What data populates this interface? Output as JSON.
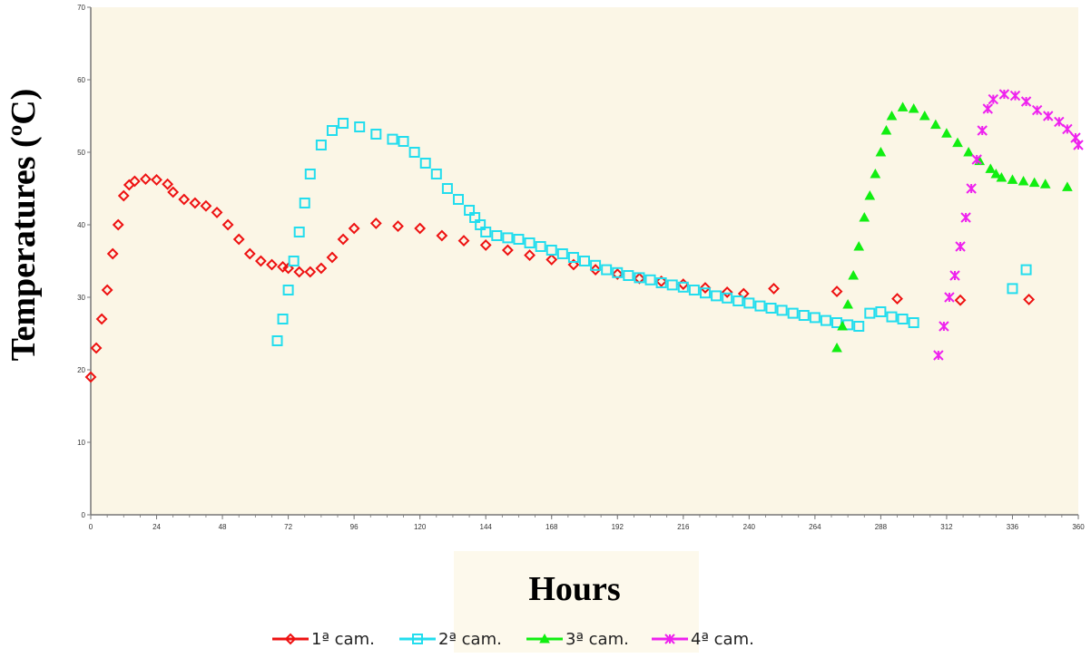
{
  "chart_data": {
    "type": "scatter",
    "ylabel": "Temperatures (ºC)",
    "xlabel": "Hours",
    "xlim": [
      0,
      360
    ],
    "ylim": [
      0,
      70
    ],
    "x_ticks": [
      "0",
      "24",
      "48",
      "72",
      "96",
      "120",
      "144",
      "168",
      "192",
      "216",
      "240",
      "264",
      "288",
      "312",
      "336",
      "360"
    ],
    "y_ticks": [
      "0",
      "10",
      "20",
      "30",
      "40",
      "50",
      "60",
      "70"
    ],
    "grid": false,
    "legend_position": "bottom",
    "colors": {
      "plot_bg": "#fbf6e6",
      "frame": "#777777",
      "cam1": "#ee1111",
      "cam2": "#22ddee",
      "cam3": "#11ee11",
      "cam4": "#ee22ee"
    },
    "series": [
      {
        "name": "1ª cam.",
        "marker": "diamond",
        "color_key": "cam1",
        "points": [
          [
            0,
            19
          ],
          [
            2,
            23
          ],
          [
            4,
            27
          ],
          [
            6,
            31
          ],
          [
            8,
            36
          ],
          [
            10,
            40
          ],
          [
            12,
            44
          ],
          [
            14,
            45.5
          ],
          [
            16,
            46
          ],
          [
            20,
            46.3
          ],
          [
            24,
            46.2
          ],
          [
            28,
            45.6
          ],
          [
            30,
            44.5
          ],
          [
            34,
            43.5
          ],
          [
            38,
            43
          ],
          [
            42,
            42.6
          ],
          [
            46,
            41.7
          ],
          [
            50,
            40
          ],
          [
            54,
            38
          ],
          [
            58,
            36
          ],
          [
            62,
            35
          ],
          [
            66,
            34.5
          ],
          [
            70,
            34.2
          ],
          [
            72,
            34
          ],
          [
            76,
            33.5
          ],
          [
            80,
            33.5
          ],
          [
            84,
            34
          ],
          [
            88,
            35.5
          ],
          [
            92,
            38
          ],
          [
            96,
            39.5
          ],
          [
            104,
            40.2
          ],
          [
            112,
            39.8
          ],
          [
            120,
            39.5
          ],
          [
            128,
            38.5
          ],
          [
            136,
            37.8
          ],
          [
            144,
            37.2
          ],
          [
            152,
            36.5
          ],
          [
            160,
            35.8
          ],
          [
            168,
            35.2
          ],
          [
            176,
            34.5
          ],
          [
            184,
            33.8
          ],
          [
            192,
            33.2
          ],
          [
            200,
            32.6
          ],
          [
            208,
            32.2
          ],
          [
            216,
            31.8
          ],
          [
            224,
            31.3
          ],
          [
            232,
            30.7
          ],
          [
            238,
            30.5
          ],
          [
            249,
            31.2
          ],
          [
            272,
            30.8
          ],
          [
            294,
            29.8
          ],
          [
            317,
            29.6
          ],
          [
            342,
            29.7
          ]
        ]
      },
      {
        "name": "2ª cam.",
        "marker": "square",
        "color_key": "cam2",
        "points": [
          [
            68,
            24
          ],
          [
            70,
            27
          ],
          [
            72,
            31
          ],
          [
            74,
            35
          ],
          [
            76,
            39
          ],
          [
            78,
            43
          ],
          [
            80,
            47
          ],
          [
            84,
            51
          ],
          [
            88,
            53
          ],
          [
            92,
            54
          ],
          [
            98,
            53.5
          ],
          [
            104,
            52.5
          ],
          [
            110,
            51.8
          ],
          [
            114,
            51.5
          ],
          [
            118,
            50
          ],
          [
            122,
            48.5
          ],
          [
            126,
            47
          ],
          [
            130,
            45
          ],
          [
            134,
            43.5
          ],
          [
            138,
            42
          ],
          [
            140,
            41
          ],
          [
            142,
            40
          ],
          [
            144,
            39
          ],
          [
            148,
            38.5
          ],
          [
            152,
            38.2
          ],
          [
            156,
            38
          ],
          [
            160,
            37.5
          ],
          [
            164,
            37
          ],
          [
            168,
            36.5
          ],
          [
            172,
            36
          ],
          [
            176,
            35.5
          ],
          [
            180,
            35
          ],
          [
            184,
            34.4
          ],
          [
            188,
            33.8
          ],
          [
            192,
            33.4
          ],
          [
            196,
            33
          ],
          [
            200,
            32.7
          ],
          [
            204,
            32.4
          ],
          [
            208,
            32
          ],
          [
            212,
            31.7
          ],
          [
            216,
            31.4
          ],
          [
            220,
            31
          ],
          [
            224,
            30.6
          ],
          [
            228,
            30.2
          ],
          [
            232,
            29.9
          ],
          [
            236,
            29.5
          ],
          [
            240,
            29.2
          ],
          [
            244,
            28.8
          ],
          [
            248,
            28.5
          ],
          [
            252,
            28.2
          ],
          [
            256,
            27.8
          ],
          [
            260,
            27.5
          ],
          [
            264,
            27.2
          ],
          [
            268,
            26.8
          ],
          [
            272,
            26.5
          ],
          [
            276,
            26.2
          ],
          [
            280,
            26
          ],
          [
            284,
            27.8
          ],
          [
            288,
            28
          ],
          [
            292,
            27.3
          ],
          [
            296,
            27
          ],
          [
            300,
            26.5
          ],
          [
            336,
            31.2
          ],
          [
            341,
            33.8
          ]
        ]
      },
      {
        "name": "3ª cam.",
        "marker": "triangle",
        "color_key": "cam3",
        "points": [
          [
            272,
            23
          ],
          [
            274,
            26
          ],
          [
            276,
            29
          ],
          [
            278,
            33
          ],
          [
            280,
            37
          ],
          [
            282,
            41
          ],
          [
            284,
            44
          ],
          [
            286,
            47
          ],
          [
            288,
            50
          ],
          [
            290,
            53
          ],
          [
            292,
            55
          ],
          [
            296,
            56.2
          ],
          [
            300,
            56
          ],
          [
            304,
            55
          ],
          [
            308,
            53.8
          ],
          [
            312,
            52.6
          ],
          [
            316,
            51.3
          ],
          [
            320,
            50
          ],
          [
            324,
            48.8
          ],
          [
            328,
            47.7
          ],
          [
            330,
            47
          ],
          [
            332,
            46.5
          ],
          [
            336,
            46.2
          ],
          [
            340,
            46
          ],
          [
            344,
            45.8
          ],
          [
            348,
            45.6
          ],
          [
            356,
            45.2
          ]
        ]
      },
      {
        "name": "4ª cam.",
        "marker": "cross",
        "color_key": "cam4",
        "points": [
          [
            309,
            22
          ],
          [
            311,
            26
          ],
          [
            313,
            30
          ],
          [
            315,
            33
          ],
          [
            317,
            37
          ],
          [
            319,
            41
          ],
          [
            321,
            45
          ],
          [
            323,
            49
          ],
          [
            325,
            53
          ],
          [
            327,
            56
          ],
          [
            329,
            57.3
          ],
          [
            333,
            58
          ],
          [
            337,
            57.8
          ],
          [
            341,
            57
          ],
          [
            345,
            55.8
          ],
          [
            349,
            55
          ],
          [
            353,
            54.2
          ],
          [
            356,
            53.2
          ],
          [
            359,
            52
          ],
          [
            360,
            51
          ]
        ]
      }
    ]
  },
  "legend": {
    "items": [
      "1ª cam.",
      "2ª cam.",
      "3ª cam.",
      "4ª cam."
    ]
  }
}
